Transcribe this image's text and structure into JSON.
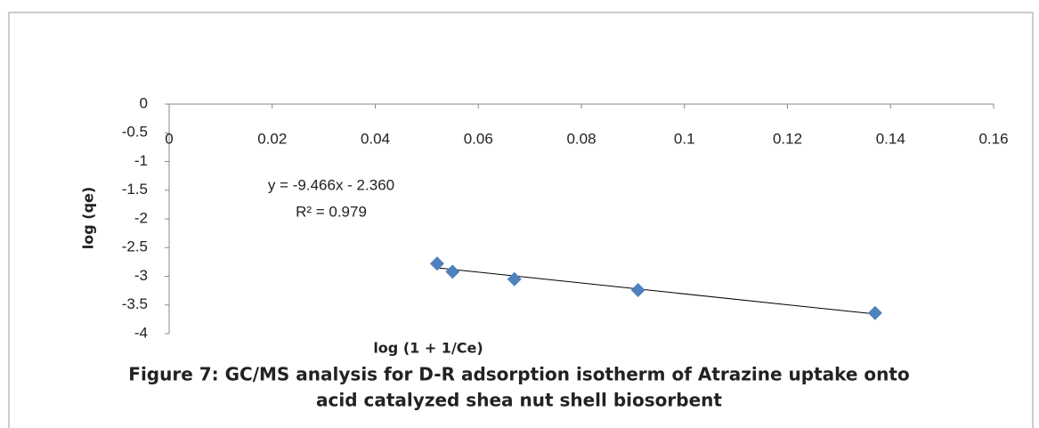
{
  "chart_data": {
    "type": "scatter",
    "x_label": "log (1 + 1/Ce)",
    "y_label": "log (qe)",
    "caption": [
      "Figure 7: GC/MS analysis for D-R adsorption isotherm of Atrazine uptake onto",
      "acid catalyzed shea nut shell biosorbent"
    ],
    "series": [
      {
        "name": "log (qe)",
        "color": "#4f81bd",
        "x": [
          0.052,
          0.055,
          0.067,
          0.091,
          0.137
        ],
        "values": [
          -2.78,
          -2.92,
          -3.05,
          -3.24,
          -3.64
        ]
      }
    ],
    "trendline": {
      "equation": "y = -9.466x - 2.360",
      "r2": "R² = 0.979",
      "slope": -9.466,
      "intercept": -2.36,
      "color": "#000000"
    },
    "xlim": [
      0,
      0.16
    ],
    "xticks": [
      0,
      0.02,
      0.04,
      0.06,
      0.08,
      0.1,
      0.12,
      0.14,
      0.16
    ],
    "ylim": [
      -4,
      0
    ],
    "yticks": [
      0,
      -0.5,
      -1,
      -1.5,
      -2,
      -2.5,
      -3,
      -3.5,
      -4
    ],
    "grid": false
  }
}
